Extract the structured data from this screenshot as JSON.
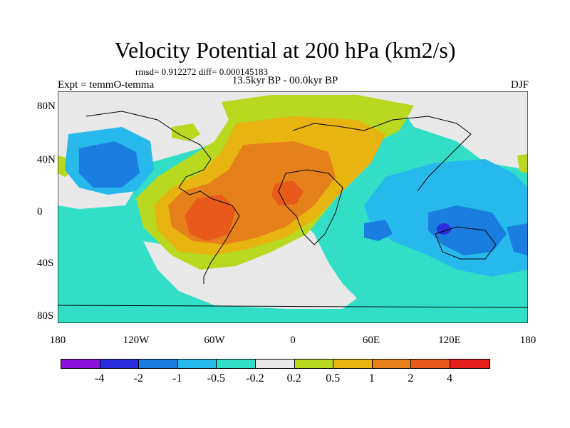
{
  "title": "Velocity Potential at 200 hPa (km2/s)",
  "stats": "rmsd= 0.912272 diff= 0.000145183",
  "subtitle": "13.5kyr BP - 00.0kyr BP",
  "experiment": "Expt = temmO-temma",
  "season": "DJF",
  "y_ticks": [
    "80N",
    "40N",
    "0",
    "40S",
    "80S"
  ],
  "x_ticks": [
    "180",
    "120W",
    "60W",
    "0",
    "60E",
    "120E",
    "180"
  ],
  "colorbar": {
    "colors": [
      "#8a14d9",
      "#2d2de0",
      "#1a7ee0",
      "#27b9ec",
      "#32dfc6",
      "#e8e8e8",
      "#b8d91f",
      "#e8b40f",
      "#e6801a",
      "#e85a1a",
      "#e61e1e"
    ],
    "labels": [
      "-4",
      "-2",
      "-1",
      "-0.5",
      "-0.2",
      "0.2",
      "0.5",
      "1",
      "2",
      "4"
    ]
  },
  "regions": {
    "background": "#32dfc6",
    "neutral": "#e8e8e8",
    "pos_weak": "#b8d91f",
    "pos_1": "#e8b40f",
    "pos_2": "#e6801a",
    "pos_3": "#e85a1a",
    "neg_weak": "#27b9ec",
    "neg_1": "#1a7ee0",
    "neg_2": "#2d2de0"
  }
}
